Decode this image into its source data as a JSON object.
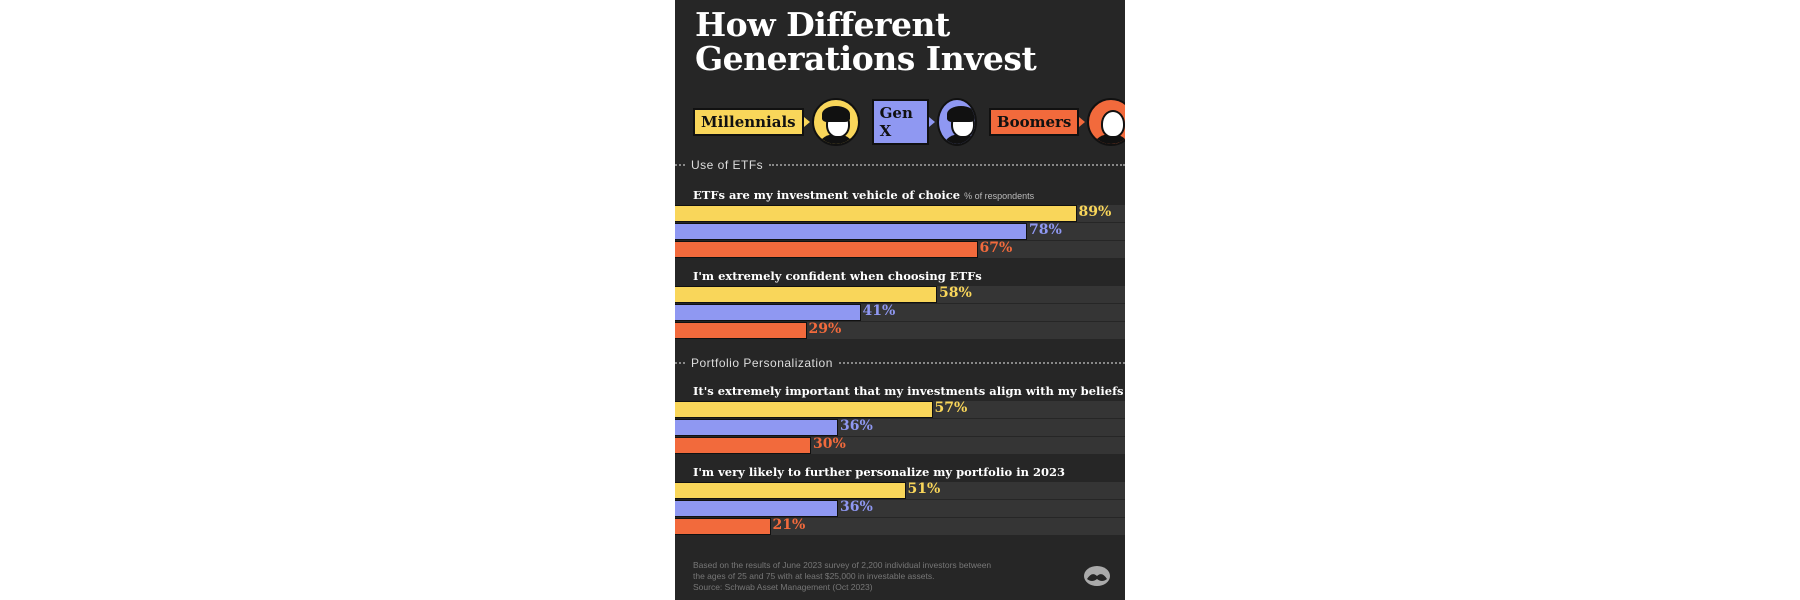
{
  "title": [
    "How Different",
    "Generations Invest"
  ],
  "legend": [
    {
      "label": "Millennials",
      "color": "#f9d65a"
    },
    {
      "label": "Gen X",
      "color": "#8f98f2"
    },
    {
      "label": "Boomers",
      "color": "#f26a3c"
    }
  ],
  "sections": [
    {
      "title": "Use of ETFs"
    },
    {
      "title": "Portfolio Personalization"
    }
  ],
  "unit_label": "% of respondents",
  "chart_data": {
    "type": "bar",
    "orientation": "horizontal",
    "xlim": [
      0,
      100
    ],
    "series_names": [
      "Millennials",
      "Gen X",
      "Boomers"
    ],
    "groups": [
      {
        "section": "Use of ETFs",
        "question": "ETFs are my investment vehicle of choice",
        "values": [
          89,
          78,
          67
        ],
        "labels": [
          "89%",
          "78%",
          "67%"
        ]
      },
      {
        "section": "Use of ETFs",
        "question": "I'm extremely confident when choosing ETFs",
        "values": [
          58,
          41,
          29
        ],
        "labels": [
          "58%",
          "41%",
          "29%"
        ]
      },
      {
        "section": "Portfolio Personalization",
        "question": "It's extremely important that my investments align with my beliefs & values",
        "values": [
          57,
          36,
          30
        ],
        "labels": [
          "57%",
          "36%",
          "30%"
        ]
      },
      {
        "section": "Portfolio Personalization",
        "question": "I'm very likely to further personalize my portfolio in 2023",
        "values": [
          51,
          36,
          21
        ],
        "labels": [
          "51%",
          "36%",
          "21%"
        ]
      }
    ]
  },
  "footnote": [
    "Based on the results of June 2023 survey of 2,200 individual investors between",
    "the ages of 25 and 75 with at least $25,000 in investable assets.",
    "Source: Schwab Asset Management (Oct 2023)"
  ]
}
